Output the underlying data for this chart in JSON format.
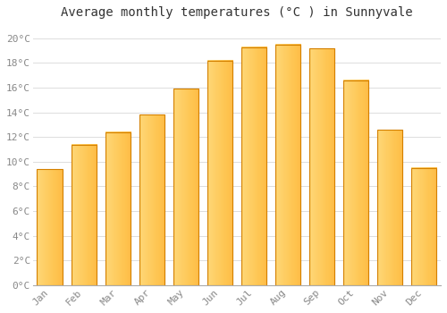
{
  "title": "Average monthly temperatures (°C ) in Sunnyvale",
  "months": [
    "Jan",
    "Feb",
    "Mar",
    "Apr",
    "May",
    "Jun",
    "Jul",
    "Aug",
    "Sep",
    "Oct",
    "Nov",
    "Dec"
  ],
  "temperatures": [
    9.4,
    11.4,
    12.4,
    13.8,
    15.9,
    18.2,
    19.3,
    19.5,
    19.2,
    16.6,
    12.6,
    9.5
  ],
  "bar_color": "#FFA500",
  "bar_edge_color": "#D48000",
  "background_color": "#FFFFFF",
  "grid_color": "#DDDDDD",
  "ylim": [
    0,
    21
  ],
  "yticks": [
    0,
    2,
    4,
    6,
    8,
    10,
    12,
    14,
    16,
    18,
    20
  ],
  "ytick_labels": [
    "0°C",
    "2°C",
    "4°C",
    "6°C",
    "8°C",
    "10°C",
    "12°C",
    "14°C",
    "16°C",
    "18°C",
    "20°C"
  ],
  "title_fontsize": 10,
  "tick_fontsize": 8,
  "tick_font_color": "#888888",
  "font_family": "monospace",
  "bar_width": 0.75
}
